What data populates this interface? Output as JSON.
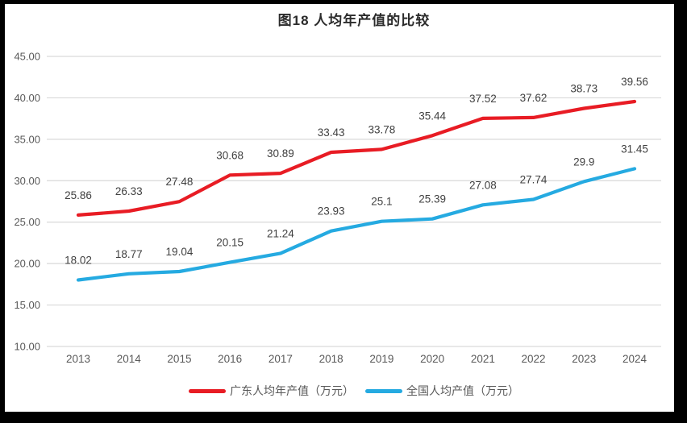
{
  "title": "图18 人均年产值的比较",
  "frame": {
    "border_color": "#000000",
    "background": "#ffffff"
  },
  "colors": {
    "guangdong_red": "#e81c24",
    "national_blue": "#25aae1",
    "gridline": "#d9d9d9",
    "axis_text": "#595959",
    "data_label_text": "#404040",
    "title_text": "#2b2b2b"
  },
  "chart_data": {
    "type": "line",
    "title": "图18 人均年产值的比较",
    "categories": [
      "2013",
      "2014",
      "2015",
      "2016",
      "2017",
      "2018",
      "2019",
      "2020",
      "2021",
      "2022",
      "2023",
      "2024"
    ],
    "series": [
      {
        "name": "广东人均年产值（万元）",
        "color": "#e81c24",
        "values": [
          25.86,
          26.33,
          27.48,
          30.68,
          30.89,
          33.43,
          33.78,
          35.44,
          37.52,
          37.62,
          38.73,
          39.56
        ],
        "labels": [
          "25.86",
          "26.33",
          "27.48",
          "30.68",
          "30.89",
          "33.43",
          "33.78",
          "35.44",
          "37.52",
          "37.62",
          "38.73",
          "39.56"
        ]
      },
      {
        "name": "全国人均产值（万元）",
        "color": "#25aae1",
        "values": [
          18.02,
          18.77,
          19.04,
          20.15,
          21.24,
          23.93,
          25.1,
          25.39,
          27.08,
          27.74,
          29.9,
          31.45
        ],
        "labels": [
          "18.02",
          "18.77",
          "19.04",
          "20.15",
          "21.24",
          "23.93",
          "25.1",
          "25.39",
          "27.08",
          "27.74",
          "29.9",
          "31.45"
        ]
      }
    ],
    "xlabel": "",
    "ylabel": "",
    "ylim": [
      10,
      45
    ],
    "ytick_step": 5,
    "ytick_labels": [
      "10.00",
      "15.00",
      "20.00",
      "25.00",
      "30.00",
      "35.00",
      "40.00",
      "45.00"
    ],
    "grid": "horizontal",
    "legend_position": "bottom",
    "data_labels": "above-points"
  }
}
